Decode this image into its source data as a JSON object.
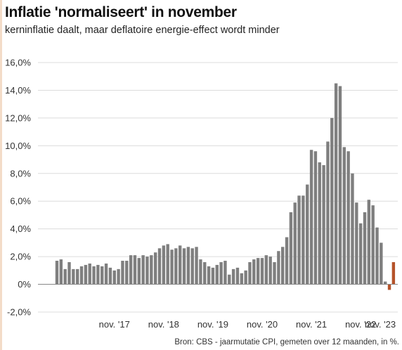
{
  "title": "Inflatie 'normaliseert' in november",
  "subtitle": "kerninflatie daalt, maar deflatoire energie-effect wordt minder",
  "source": "Bron: CBS - jaarmutatie CPI, gemeten over 12 maanden, in %.",
  "colors": {
    "bar": "#7f7f7f",
    "highlight": "#b5532a",
    "grid": "#dcdcdc",
    "zero": "#888888",
    "accent": "#f3dcc8"
  },
  "chart_data": {
    "type": "bar",
    "title": "Inflatie 'normaliseert' in november",
    "ylabel": "",
    "xlabel": "",
    "ylim": [
      -2,
      16
    ],
    "yticks": [
      -2,
      0,
      2,
      4,
      6,
      8,
      10,
      12,
      14,
      16
    ],
    "ytick_labels": [
      "-2,0%",
      "0%",
      "2,0%",
      "4,0%",
      "6,0%",
      "8,0%",
      "10,0%",
      "12,0%",
      "14,0%",
      "16,0%"
    ],
    "x_start": "2016-09",
    "x_tick_labels": [
      {
        "label": "nov. '17",
        "month": "2017-11"
      },
      {
        "label": "nov. '18",
        "month": "2018-11"
      },
      {
        "label": "nov. '19",
        "month": "2019-11"
      },
      {
        "label": "nov. '20",
        "month": "2020-11"
      },
      {
        "label": "nov. '21",
        "month": "2021-11"
      },
      {
        "label": "nov. '22",
        "month": "2022-11"
      },
      {
        "label": "nov. '23",
        "month": "2023-11"
      }
    ],
    "grid": true,
    "highlight_last": true,
    "values": [
      1.7,
      1.8,
      1.1,
      1.6,
      1.1,
      1.1,
      1.3,
      1.4,
      1.5,
      1.3,
      1.4,
      1.3,
      1.5,
      1.2,
      1.0,
      1.1,
      1.7,
      1.7,
      2.1,
      2.1,
      1.9,
      2.1,
      2.0,
      2.1,
      2.3,
      2.6,
      2.8,
      2.9,
      2.5,
      2.6,
      2.8,
      2.6,
      2.7,
      2.6,
      2.7,
      1.8,
      1.6,
      1.3,
      1.2,
      1.4,
      1.6,
      1.7,
      0.7,
      1.1,
      1.2,
      0.8,
      1.0,
      1.6,
      1.8,
      1.9,
      1.9,
      2.1,
      2.0,
      1.6,
      2.4,
      2.7,
      3.4,
      5.2,
      5.9,
      6.4,
      6.4,
      7.2,
      9.7,
      9.6,
      8.8,
      8.6,
      10.3,
      12.0,
      14.5,
      14.3,
      9.9,
      9.6,
      8.0,
      5.9,
      4.4,
      5.2,
      6.1,
      5.7,
      4.1,
      3.0,
      0.2,
      -0.4,
      1.6
    ]
  }
}
